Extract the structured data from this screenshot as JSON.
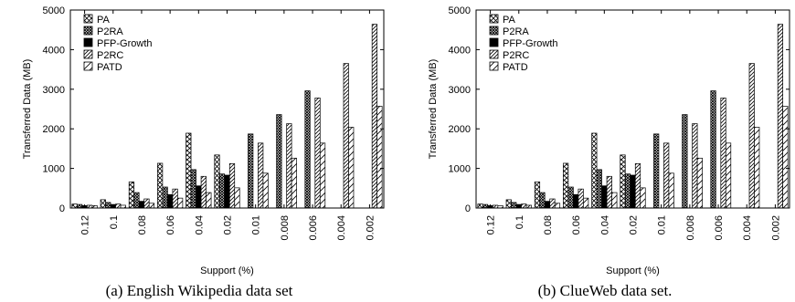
{
  "colors": {
    "ink": "#000000",
    "background": "#ffffff"
  },
  "chart_data": [
    {
      "type": "bar",
      "caption": "(a)  English Wikipedia data set",
      "xlabel": "Support (%)",
      "ylabel": "Transferred Data (MB)",
      "ylim": [
        0,
        5000
      ],
      "yticks": [
        0,
        1000,
        2000,
        3000,
        4000,
        5000
      ],
      "categories": [
        "0.12",
        "0.1",
        "0.08",
        "0.06",
        "0.04",
        "0.02",
        "0.01",
        "0.008",
        "0.006",
        "0.004",
        "0.002"
      ],
      "legend_position": "top-left",
      "grid": false,
      "series": [
        {
          "name": "PA",
          "pattern": "crosshatch",
          "values": [
            100,
            210,
            660,
            1130,
            1890,
            1340,
            null,
            null,
            null,
            null,
            null
          ]
        },
        {
          "name": "P2RA",
          "pattern": "dense-crosshatch",
          "values": [
            90,
            140,
            390,
            530,
            970,
            860,
            1870,
            2360,
            2960,
            null,
            null
          ]
        },
        {
          "name": "PFP-Growth",
          "pattern": "solid",
          "values": [
            60,
            90,
            170,
            340,
            560,
            830,
            null,
            null,
            null,
            null,
            null
          ]
        },
        {
          "name": "P2RC",
          "pattern": "diagonal",
          "values": [
            70,
            100,
            230,
            480,
            800,
            1120,
            1640,
            2130,
            2780,
            3650,
            4640
          ]
        },
        {
          "name": "PATD",
          "pattern": "sparse-diagonal",
          "values": [
            60,
            70,
            120,
            250,
            390,
            510,
            880,
            1260,
            1640,
            2040,
            2570
          ]
        }
      ]
    },
    {
      "type": "bar",
      "caption": "(b)  ClueWeb data set.",
      "xlabel": "Support (%)",
      "ylabel": "Transferred Data (MB)",
      "ylim": [
        0,
        5000
      ],
      "yticks": [
        0,
        1000,
        2000,
        3000,
        4000,
        5000
      ],
      "categories": [
        "0.12",
        "0.1",
        "0.08",
        "0.06",
        "0.04",
        "0.02",
        "0.01",
        "0.008",
        "0.006",
        "0.004",
        "0.002"
      ],
      "legend_position": "top-left",
      "grid": false,
      "series": [
        {
          "name": "PA",
          "pattern": "crosshatch",
          "values": [
            100,
            210,
            660,
            1130,
            1890,
            1340,
            null,
            null,
            null,
            null,
            null
          ]
        },
        {
          "name": "P2RA",
          "pattern": "dense-crosshatch",
          "values": [
            90,
            140,
            390,
            530,
            970,
            860,
            1870,
            2360,
            2960,
            null,
            null
          ]
        },
        {
          "name": "PFP-Growth",
          "pattern": "solid",
          "values": [
            60,
            90,
            170,
            340,
            560,
            830,
            null,
            null,
            null,
            null,
            null
          ]
        },
        {
          "name": "P2RC",
          "pattern": "diagonal",
          "values": [
            70,
            100,
            230,
            480,
            800,
            1120,
            1640,
            2130,
            2780,
            3650,
            4640
          ]
        },
        {
          "name": "PATD",
          "pattern": "sparse-diagonal",
          "values": [
            60,
            70,
            120,
            250,
            390,
            510,
            880,
            1260,
            1640,
            2040,
            2570
          ]
        }
      ]
    }
  ]
}
